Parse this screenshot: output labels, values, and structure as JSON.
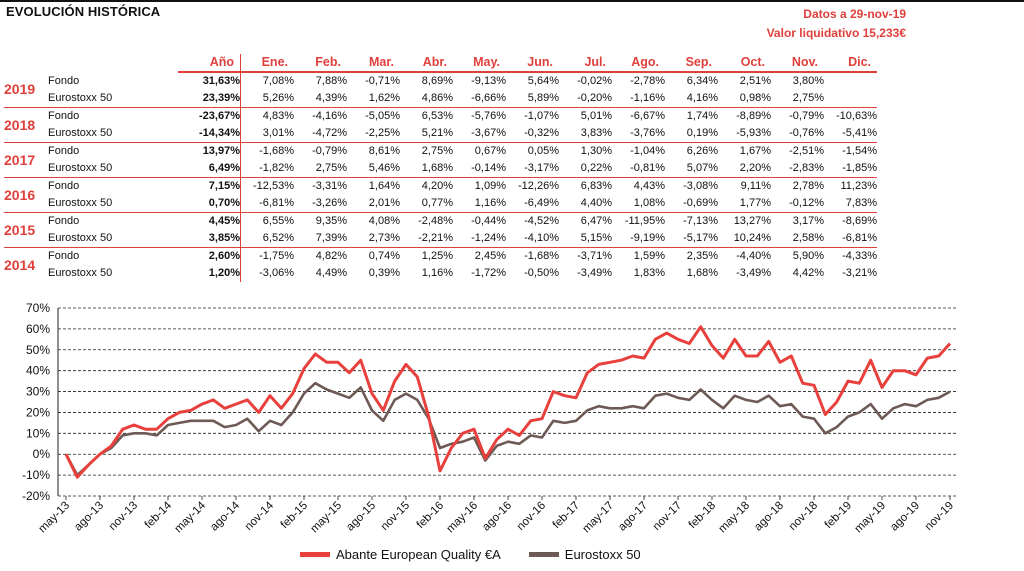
{
  "header": {
    "title": "EVOLUCIÓN HISTÓRICA",
    "date_text": "Datos a 29-nov-19",
    "nav_text": "Valor liquidativo 15,233€"
  },
  "table": {
    "columns": [
      "Año",
      "Ene.",
      "Feb.",
      "Mar.",
      "Abr.",
      "May.",
      "Jun.",
      "Jul.",
      "Ago.",
      "Sep.",
      "Oct.",
      "Nov.",
      "Dic."
    ],
    "rows": [
      {
        "year": "2019",
        "fondo": {
          "label": "Fondo",
          "anio": "31,63%",
          "months": [
            "7,08%",
            "7,88%",
            "-0,71%",
            "8,69%",
            "-9,13%",
            "5,64%",
            "-0,02%",
            "-2,78%",
            "6,34%",
            "2,51%",
            "3,80%",
            ""
          ]
        },
        "index": {
          "label": "Eurostoxx 50",
          "anio": "23,39%",
          "months": [
            "5,26%",
            "4,39%",
            "1,62%",
            "4,86%",
            "-6,66%",
            "5,89%",
            "-0,20%",
            "-1,16%",
            "4,16%",
            "0,98%",
            "2,75%",
            ""
          ]
        }
      },
      {
        "year": "2018",
        "fondo": {
          "label": "Fondo",
          "anio": "-23,67%",
          "months": [
            "4,83%",
            "-4,16%",
            "-5,05%",
            "6,53%",
            "-5,76%",
            "-1,07%",
            "5,01%",
            "-6,67%",
            "1,74%",
            "-8,89%",
            "-0,79%",
            "-10,63%"
          ]
        },
        "index": {
          "label": "Eurostoxx 50",
          "anio": "-14,34%",
          "months": [
            "3,01%",
            "-4,72%",
            "-2,25%",
            "5,21%",
            "-3,67%",
            "-0,32%",
            "3,83%",
            "-3,76%",
            "0,19%",
            "-5,93%",
            "-0,76%",
            "-5,41%"
          ]
        }
      },
      {
        "year": "2017",
        "fondo": {
          "label": "Fondo",
          "anio": "13,97%",
          "months": [
            "-1,68%",
            "-0,79%",
            "8,61%",
            "2,75%",
            "0,67%",
            "0,05%",
            "1,30%",
            "-1,04%",
            "6,26%",
            "1,67%",
            "-2,51%",
            "-1,54%"
          ]
        },
        "index": {
          "label": "Eurostoxx 50",
          "anio": "6,49%",
          "months": [
            "-1,82%",
            "2,75%",
            "5,46%",
            "1,68%",
            "-0,14%",
            "-3,17%",
            "0,22%",
            "-0,81%",
            "5,07%",
            "2,20%",
            "-2,83%",
            "-1,85%"
          ]
        }
      },
      {
        "year": "2016",
        "fondo": {
          "label": "Fondo",
          "anio": "7,15%",
          "months": [
            "-12,53%",
            "-3,31%",
            "1,64%",
            "4,20%",
            "1,09%",
            "-12,26%",
            "6,83%",
            "4,43%",
            "-3,08%",
            "9,11%",
            "2,78%",
            "11,23%"
          ]
        },
        "index": {
          "label": "Eurostoxx 50",
          "anio": "0,70%",
          "months": [
            "-6,81%",
            "-3,26%",
            "2,01%",
            "0,77%",
            "1,16%",
            "-6,49%",
            "4,40%",
            "1,08%",
            "-0,69%",
            "1,77%",
            "-0,12%",
            "7,83%"
          ]
        }
      },
      {
        "year": "2015",
        "fondo": {
          "label": "Fondo",
          "anio": "4,45%",
          "months": [
            "6,55%",
            "9,35%",
            "4,08%",
            "-2,48%",
            "-0,44%",
            "-4,52%",
            "6,47%",
            "-11,95%",
            "-7,13%",
            "13,27%",
            "3,17%",
            "-8,69%"
          ]
        },
        "index": {
          "label": "Eurostoxx 50",
          "anio": "3,85%",
          "months": [
            "6,52%",
            "7,39%",
            "2,73%",
            "-2,21%",
            "-1,24%",
            "-4,10%",
            "5,15%",
            "-9,19%",
            "-5,17%",
            "10,24%",
            "2,58%",
            "-6,81%"
          ]
        }
      },
      {
        "year": "2014",
        "fondo": {
          "label": "Fondo",
          "anio": "2,60%",
          "months": [
            "-1,75%",
            "4,82%",
            "0,74%",
            "1,25%",
            "2,45%",
            "-1,68%",
            "-3,71%",
            "1,59%",
            "2,35%",
            "-4,40%",
            "5,90%",
            "-4,33%"
          ]
        },
        "index": {
          "label": "Eurostoxx 50",
          "anio": "1,20%",
          "months": [
            "-3,06%",
            "4,49%",
            "0,39%",
            "1,16%",
            "-1,72%",
            "-0,50%",
            "-3,49%",
            "1,83%",
            "1,68%",
            "-3,49%",
            "4,42%",
            "-3,21%"
          ]
        }
      }
    ]
  },
  "chart_data": {
    "type": "line",
    "title": "",
    "xlabel": "",
    "ylabel": "",
    "ylim": [
      -20,
      70
    ],
    "yticks": [
      -20,
      -10,
      0,
      10,
      20,
      30,
      40,
      50,
      60,
      70
    ],
    "ytick_labels": [
      "-20%",
      "-10%",
      "0%",
      "10%",
      "20%",
      "30%",
      "40%",
      "50%",
      "60%",
      "70%"
    ],
    "x_tick_labels": [
      "may-13",
      "ago-13",
      "nov-13",
      "feb-14",
      "may-14",
      "ago-14",
      "nov-14",
      "feb-15",
      "may-15",
      "ago-15",
      "nov-15",
      "feb-16",
      "may-16",
      "ago-16",
      "nov-16",
      "feb-17",
      "may-17",
      "ago-17",
      "nov-17",
      "feb-18",
      "may-18",
      "ago-18",
      "nov-18",
      "feb-19",
      "may-19",
      "ago-19",
      "nov-19"
    ],
    "grid": "horizontal dashed",
    "legend": "bottom",
    "x": [
      "2013-05",
      "2013-06",
      "2013-07",
      "2013-08",
      "2013-09",
      "2013-10",
      "2013-11",
      "2013-12",
      "2014-01",
      "2014-02",
      "2014-03",
      "2014-04",
      "2014-05",
      "2014-06",
      "2014-07",
      "2014-08",
      "2014-09",
      "2014-10",
      "2014-11",
      "2014-12",
      "2015-01",
      "2015-02",
      "2015-03",
      "2015-04",
      "2015-05",
      "2015-06",
      "2015-07",
      "2015-08",
      "2015-09",
      "2015-10",
      "2015-11",
      "2015-12",
      "2016-01",
      "2016-02",
      "2016-03",
      "2016-04",
      "2016-05",
      "2016-06",
      "2016-07",
      "2016-08",
      "2016-09",
      "2016-10",
      "2016-11",
      "2016-12",
      "2017-01",
      "2017-02",
      "2017-03",
      "2017-04",
      "2017-05",
      "2017-06",
      "2017-07",
      "2017-08",
      "2017-09",
      "2017-10",
      "2017-11",
      "2017-12",
      "2018-01",
      "2018-02",
      "2018-03",
      "2018-04",
      "2018-05",
      "2018-06",
      "2018-07",
      "2018-08",
      "2018-09",
      "2018-10",
      "2018-11",
      "2018-12",
      "2019-01",
      "2019-02",
      "2019-03",
      "2019-04",
      "2019-05",
      "2019-06",
      "2019-07",
      "2019-08",
      "2019-09",
      "2019-10",
      "2019-11"
    ],
    "series": [
      {
        "name": "Abante European Quality €A",
        "color": "#e8403c",
        "values": [
          0,
          -11,
          -5,
          0,
          4,
          12,
          14,
          12,
          12,
          17,
          20,
          21,
          24,
          26,
          22,
          24,
          26,
          20,
          28,
          22,
          29,
          41,
          48,
          44,
          44,
          39,
          45,
          29,
          21,
          35,
          43,
          37,
          18,
          -8,
          3,
          10,
          12,
          -2,
          7,
          12,
          9,
          16,
          17,
          30,
          28,
          27,
          39,
          43,
          44,
          45,
          47,
          46,
          55,
          58,
          55,
          53,
          61,
          52,
          46,
          55,
          47,
          47,
          54,
          44,
          47,
          34,
          33,
          19,
          25,
          35,
          34,
          45,
          32,
          40,
          40,
          38,
          46,
          47,
          53
        ]
      },
      {
        "name": "Eurostoxx 50",
        "color": "#6e5a55",
        "values": [
          0,
          -10,
          -5,
          0,
          3,
          9,
          10,
          10,
          9,
          14,
          15,
          16,
          16,
          16,
          13,
          14,
          17,
          11,
          16,
          14,
          20,
          29,
          34,
          31,
          29,
          27,
          32,
          21,
          16,
          26,
          29,
          26,
          17,
          3,
          5,
          6,
          8,
          -3,
          4,
          6,
          5,
          9,
          8,
          16,
          15,
          16,
          21,
          23,
          22,
          22,
          23,
          22,
          28,
          29,
          27,
          26,
          31,
          26,
          22,
          28,
          26,
          25,
          28,
          23,
          24,
          18,
          17,
          10,
          13,
          18,
          20,
          24,
          17,
          22,
          24,
          23,
          26,
          27,
          30
        ]
      }
    ]
  }
}
